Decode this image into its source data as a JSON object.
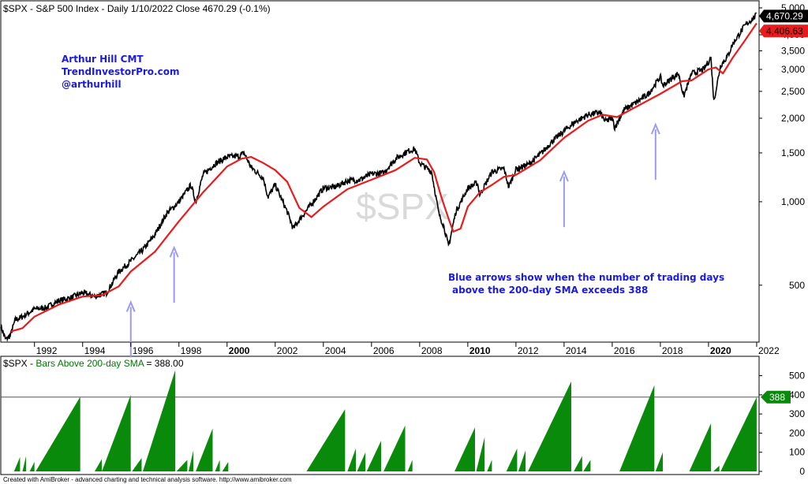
{
  "chart_data": [
    {
      "type": "line",
      "title": "$SPX - S&P 500 Index - Daily 1/10/2022 Close 4670.29 (-0.1%)",
      "watermark": "$SPX",
      "scale": "log",
      "ylim": [
        320,
        5000
      ],
      "xlim": [
        1990.6,
        2022.1
      ],
      "grid": false,
      "yticks": [
        {
          "v": 500,
          "label": "500"
        },
        {
          "v": 1000,
          "label": "1,000"
        },
        {
          "v": 1500,
          "label": "1,500"
        },
        {
          "v": 2000,
          "label": "2,000"
        },
        {
          "v": 2500,
          "label": "2,500"
        },
        {
          "v": 3000,
          "label": "3,000"
        },
        {
          "v": 3500,
          "label": "3,500"
        },
        {
          "v": 4000,
          "label": "4,000"
        },
        {
          "v": 5000,
          "label": "5,000"
        }
      ],
      "xticks": [
        {
          "v": 1992,
          "label": "1992",
          "bold": false
        },
        {
          "v": 1994,
          "label": "1994",
          "bold": false
        },
        {
          "v": 1996,
          "label": "1996",
          "bold": false
        },
        {
          "v": 1998,
          "label": "1998",
          "bold": false
        },
        {
          "v": 2000,
          "label": "2000",
          "bold": true
        },
        {
          "v": 2002,
          "label": "2002",
          "bold": false
        },
        {
          "v": 2004,
          "label": "2004",
          "bold": false
        },
        {
          "v": 2006,
          "label": "2006",
          "bold": false
        },
        {
          "v": 2008,
          "label": "2008",
          "bold": false
        },
        {
          "v": 2010,
          "label": "2010",
          "bold": true
        },
        {
          "v": 2012,
          "label": "2012",
          "bold": false
        },
        {
          "v": 2014,
          "label": "2014",
          "bold": false
        },
        {
          "v": 2016,
          "label": "2016",
          "bold": false
        },
        {
          "v": 2018,
          "label": "2018",
          "bold": false
        },
        {
          "v": 2020,
          "label": "2020",
          "bold": true
        },
        {
          "v": 2022,
          "label": "2022",
          "bold": false
        }
      ],
      "series": [
        {
          "name": "$SPX",
          "color": "#000000",
          "x": [
            1990.6,
            1990.8,
            1991.0,
            1991.2,
            1991.5,
            1992.0,
            1992.5,
            1993.0,
            1993.5,
            1994.0,
            1994.5,
            1995.0,
            1995.5,
            1996.0,
            1996.5,
            1997.0,
            1997.5,
            1997.8,
            1998.0,
            1998.5,
            1998.7,
            1999.0,
            1999.5,
            2000.0,
            2000.5,
            2000.7,
            2001.0,
            2001.5,
            2001.7,
            2002.0,
            2002.5,
            2002.75,
            2003.0,
            2003.5,
            2004.0,
            2004.5,
            2005.0,
            2005.5,
            2006.0,
            2006.5,
            2007.0,
            2007.5,
            2007.8,
            2008.0,
            2008.5,
            2008.8,
            2009.0,
            2009.2,
            2009.5,
            2010.0,
            2010.4,
            2010.5,
            2011.0,
            2011.5,
            2011.7,
            2012.0,
            2012.5,
            2013.0,
            2013.5,
            2014.0,
            2014.5,
            2015.0,
            2015.5,
            2015.7,
            2016.0,
            2016.1,
            2016.5,
            2017.0,
            2017.5,
            2018.0,
            2018.1,
            2018.5,
            2018.75,
            2018.97,
            2019.3,
            2019.8,
            2020.1,
            2020.22,
            2020.5,
            2020.8,
            2021.0,
            2021.5,
            2021.98
          ],
          "values": [
            358,
            318,
            330,
            375,
            385,
            410,
            415,
            440,
            450,
            470,
            455,
            470,
            560,
            610,
            670,
            760,
            910,
            960,
            1000,
            1150,
            1000,
            1250,
            1370,
            1450,
            1460,
            1500,
            1330,
            1220,
            1040,
            1150,
            920,
            800,
            860,
            980,
            1120,
            1130,
            1190,
            1200,
            1260,
            1270,
            1430,
            1520,
            1550,
            1380,
            1280,
            900,
            820,
            690,
            920,
            1120,
            1170,
            1060,
            1280,
            1320,
            1130,
            1310,
            1360,
            1480,
            1650,
            1800,
            1950,
            2060,
            2100,
            1950,
            2000,
            1850,
            2150,
            2280,
            2450,
            2820,
            2620,
            2800,
            2900,
            2400,
            2900,
            3000,
            3300,
            2300,
            3100,
            3350,
            3700,
            4300,
            4700
          ]
        },
        {
          "name": "200-day SMA",
          "color": "#e81c1c",
          "x": [
            1991.0,
            1991.5,
            1992.0,
            1993.0,
            1994.0,
            1994.8,
            1995.5,
            1996.0,
            1997.0,
            1998.0,
            1999.0,
            2000.0,
            2000.6,
            2001.0,
            2001.5,
            2002.0,
            2002.5,
            2003.0,
            2003.5,
            2004.0,
            2005.0,
            2006.0,
            2007.0,
            2007.8,
            2008.3,
            2008.6,
            2008.9,
            2009.2,
            2009.4,
            2009.7,
            2010.0,
            2010.5,
            2011.0,
            2011.5,
            2012.0,
            2013.0,
            2014.0,
            2015.0,
            2015.6,
            2016.2,
            2017.0,
            2018.0,
            2018.9,
            2019.3,
            2020.0,
            2020.3,
            2020.6,
            2021.0,
            2021.5,
            2022.0
          ],
          "values": [
            340,
            350,
            385,
            425,
            455,
            460,
            495,
            560,
            660,
            850,
            1080,
            1340,
            1430,
            1450,
            1380,
            1300,
            1180,
            950,
            880,
            960,
            1110,
            1200,
            1300,
            1440,
            1420,
            1280,
            1040,
            870,
            780,
            800,
            960,
            1080,
            1150,
            1230,
            1250,
            1410,
            1700,
            1960,
            2060,
            2020,
            2200,
            2450,
            2720,
            2740,
            3000,
            3050,
            2900,
            3300,
            3800,
            4400
          ]
        }
      ],
      "price_labels": [
        {
          "name": "close",
          "value": 4670.29,
          "text": "4,670.29",
          "bg": "#000000",
          "fg": "#ffffff"
        },
        {
          "name": "sma",
          "value": 4406.63,
          "text": "4,406.63",
          "bg": "#e81c1c",
          "fg": "#000000"
        }
      ],
      "arrows": [
        1996.0,
        1997.8,
        2014.0,
        2017.8
      ],
      "arrow_color": "#9b9bf2",
      "annotations": {
        "author": [
          "Arthur Hill CMT",
          "TrendInvestorPro.com",
          "@arthurhill"
        ],
        "note": [
          "Blue arrows show when the number of trading days",
          "above the 200-day SMA exceeds 388"
        ]
      }
    },
    {
      "type": "area",
      "title_prefix": "$SPX - ",
      "title_series": "Bars Above 200-day SMA",
      "title_value": " = 388.00",
      "title_color": "#007700",
      "ylim": [
        0,
        560
      ],
      "threshold": 388,
      "threshold_label": "388",
      "color": "#0a8a0a",
      "yticks": [
        {
          "v": 0,
          "label": "0"
        },
        {
          "v": 100,
          "label": "100"
        },
        {
          "v": 200,
          "label": "200"
        },
        {
          "v": 300,
          "label": "300"
        },
        {
          "v": 400,
          "label": "400"
        },
        {
          "v": 500,
          "label": "500"
        }
      ],
      "segments": [
        [
          1991.15,
          1991.4,
          75
        ],
        [
          1991.5,
          1991.65,
          80
        ],
        [
          1991.8,
          1992.0,
          50
        ],
        [
          1992.05,
          1993.9,
          390
        ],
        [
          1994.5,
          1994.8,
          65
        ],
        [
          1994.8,
          1996.0,
          400
        ],
        [
          1996.05,
          1996.45,
          70
        ],
        [
          1996.5,
          1997.85,
          530
        ],
        [
          1997.9,
          1998.35,
          60
        ],
        [
          1998.4,
          1998.6,
          110
        ],
        [
          1998.7,
          1999.4,
          225
        ],
        [
          1999.5,
          1999.7,
          60
        ],
        [
          1999.8,
          2000.05,
          50
        ],
        [
          2003.3,
          2004.9,
          325
        ],
        [
          2005.0,
          2005.35,
          120
        ],
        [
          2005.4,
          2005.75,
          100
        ],
        [
          2005.8,
          2006.4,
          160
        ],
        [
          2006.5,
          2007.4,
          240
        ],
        [
          2007.5,
          2007.7,
          60
        ],
        [
          2009.45,
          2010.3,
          230
        ],
        [
          2010.35,
          2010.7,
          180
        ],
        [
          2010.8,
          2011.0,
          60
        ],
        [
          2011.6,
          2012.05,
          120
        ],
        [
          2012.1,
          2012.4,
          110
        ],
        [
          2012.5,
          2014.3,
          470
        ],
        [
          2014.4,
          2014.75,
          80
        ],
        [
          2014.8,
          2015.1,
          60
        ],
        [
          2016.3,
          2017.75,
          450
        ],
        [
          2017.8,
          2018.1,
          100
        ],
        [
          2019.2,
          2020.1,
          250
        ],
        [
          2020.2,
          2020.45,
          30
        ],
        [
          2020.5,
          2022.0,
          388
        ]
      ]
    }
  ],
  "footer": "Created with AmiBroker - advanced charting and technical analysis software. http://www.amibroker.com"
}
